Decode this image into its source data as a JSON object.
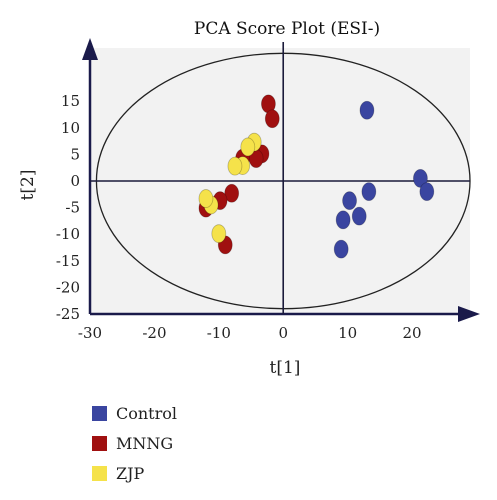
{
  "chart_data": {
    "type": "scatter",
    "title": "PCA Score Plot (ESI-)",
    "xlabel": "t[1]",
    "ylabel": "t[2]",
    "xlim": [
      -30,
      29
    ],
    "ylim": [
      -25,
      25
    ],
    "xticks": [
      -30,
      -20,
      -10,
      0,
      10,
      20
    ],
    "yticks": [
      -25,
      -20,
      -15,
      -10,
      -5,
      0,
      5,
      10,
      15
    ],
    "ellipse": {
      "cx": 0,
      "cy": 0,
      "rx": 29,
      "ry": 24
    },
    "series": [
      {
        "name": "Control",
        "color": "#3a45a0",
        "points": [
          [
            13,
            13.3
          ],
          [
            21.3,
            0.5
          ],
          [
            22.3,
            -2
          ],
          [
            13.3,
            -2
          ],
          [
            10.3,
            -3.7
          ],
          [
            9.3,
            -7.3
          ],
          [
            11.8,
            -6.6
          ],
          [
            9,
            -12.8
          ]
        ]
      },
      {
        "name": "MNNG",
        "color": "#a01010",
        "points": [
          [
            -2.3,
            14.5
          ],
          [
            -1.7,
            11.7
          ],
          [
            -3.3,
            5.1
          ],
          [
            -4.8,
            6.2
          ],
          [
            -4.2,
            4.2
          ],
          [
            -6.3,
            4.3
          ],
          [
            -8,
            -2.3
          ],
          [
            -9.8,
            -3.7
          ],
          [
            -12,
            -5.1
          ],
          [
            -9,
            -12
          ]
        ]
      },
      {
        "name": "ZJP",
        "color": "#f5e24a",
        "points": [
          [
            -4.5,
            7.3
          ],
          [
            -5.5,
            6.4
          ],
          [
            -6.3,
            2.9
          ],
          [
            -7.5,
            2.8
          ],
          [
            -11.2,
            -4.5
          ],
          [
            -12,
            -3.3
          ],
          [
            -10,
            -9.9
          ]
        ]
      }
    ],
    "legend_position": "bottom-left",
    "grid": false,
    "background": "#f2f2f2"
  }
}
